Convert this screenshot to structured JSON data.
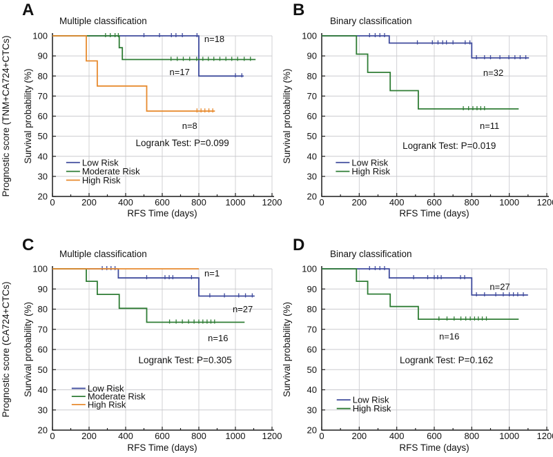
{
  "figure": {
    "description": "Kaplan-Meier recurrence-free survival curves, four panels",
    "colors": {
      "low_risk": "#3e4a9c",
      "moderate_risk": "#2e7c34",
      "high_risk": "#e78a2e",
      "grid": "#cbcbcf",
      "axis": "#1c1c1c",
      "text": "#111111",
      "background": "#ffffff"
    }
  },
  "chart_data": [
    {
      "panel_label": "A",
      "type": "line",
      "km_step": true,
      "title": "Multiple classification",
      "xlabel": "RFS Time (days)",
      "ylabel": "Survival probability (%)",
      "ylabel_outer": "Prognostic score (TNM+CA724+CTCs)",
      "xlim": [
        0,
        1200
      ],
      "ylim": [
        20,
        100
      ],
      "xticks": [
        0,
        200,
        400,
        600,
        800,
        1000,
        1200
      ],
      "x_minor_ticks": [
        100,
        300,
        500,
        700,
        900,
        1100
      ],
      "yticks": [
        20,
        30,
        40,
        50,
        60,
        70,
        80,
        90,
        100
      ],
      "grid": true,
      "annotation": {
        "text": "Logrank Test: P=0.099",
        "day": 710,
        "value": 46.5
      },
      "legend": {
        "position": "lower-left",
        "day": 75,
        "value": 36.9,
        "row_step_value": 4.4
      },
      "series": [
        {
          "name": "Low Risk",
          "color": "#3e4a9c",
          "n_label": "n=18",
          "n_label_day": 885,
          "n_label_value": 98.3,
          "steps_day_value": [
            [
              0,
              100
            ],
            [
              800,
              100
            ],
            [
              800,
              80
            ],
            [
              1045,
              80
            ]
          ],
          "censor_day_value": [
            [
              500,
              100
            ],
            [
              585,
              100
            ],
            [
              650,
              100
            ],
            [
              675,
              100
            ],
            [
              710,
              100
            ],
            [
              790,
              100
            ],
            [
              1000,
              80
            ],
            [
              1035,
              80
            ]
          ]
        },
        {
          "name": "Moderate Risk",
          "color": "#2e7c34",
          "n_label": "n=17",
          "n_label_day": 695,
          "n_label_value": 81.8,
          "steps_day_value": [
            [
              0,
              100
            ],
            [
              365,
              100
            ],
            [
              365,
              94.1
            ],
            [
              382,
              94.1
            ],
            [
              382,
              88.2
            ],
            [
              1110,
              88.2
            ]
          ],
          "censor_day_value": [
            [
              290,
              100
            ],
            [
              316,
              100
            ],
            [
              342,
              100
            ],
            [
              360,
              100
            ],
            [
              648,
              88.2
            ],
            [
              682,
              88.2
            ],
            [
              715,
              88.2
            ],
            [
              750,
              88.2
            ],
            [
              788,
              88.2
            ],
            [
              822,
              88.2
            ],
            [
              852,
              88.2
            ],
            [
              882,
              88.2
            ],
            [
              915,
              88.2
            ],
            [
              948,
              88.2
            ],
            [
              980,
              88.2
            ],
            [
              1012,
              88.2
            ],
            [
              1048,
              88.2
            ],
            [
              1082,
              88.2
            ]
          ]
        },
        {
          "name": "High Risk",
          "color": "#e78a2e",
          "n_label": "n=8",
          "n_label_day": 750,
          "n_label_value": 55,
          "steps_day_value": [
            [
              0,
              100
            ],
            [
              185,
              100
            ],
            [
              185,
              87.5
            ],
            [
              245,
              87.5
            ],
            [
              245,
              75
            ],
            [
              515,
              75
            ],
            [
              515,
              62.5
            ],
            [
              888,
              62.5
            ]
          ],
          "censor_day_value": [
            [
              790,
              62.5
            ],
            [
              812,
              62.5
            ],
            [
              833,
              62.5
            ],
            [
              855,
              62.5
            ],
            [
              876,
              62.5
            ]
          ]
        }
      ]
    },
    {
      "panel_label": "B",
      "type": "line",
      "km_step": true,
      "title": "Binary classification",
      "xlabel": "RFS Time (days)",
      "ylabel": "Survival probability (%)",
      "xlim": [
        0,
        1200
      ],
      "ylim": [
        20,
        100
      ],
      "xticks": [
        0,
        200,
        400,
        600,
        800,
        1000,
        1200
      ],
      "x_minor_ticks": [
        100,
        300,
        500,
        700,
        900,
        1100
      ],
      "yticks": [
        20,
        30,
        40,
        50,
        60,
        70,
        80,
        90,
        100
      ],
      "grid": true,
      "annotation": {
        "text": "Logrank Test: P=0.019",
        "day": 680,
        "value": 45.0
      },
      "legend": {
        "position": "lower-left",
        "day": 75,
        "value": 36.9,
        "row_step_value": 4.4
      },
      "series": [
        {
          "name": "Low Risk",
          "color": "#3e4a9c",
          "n_label": "n=32",
          "n_label_day": 915,
          "n_label_value": 81.5,
          "steps_day_value": [
            [
              0,
              100
            ],
            [
              360,
              100
            ],
            [
              360,
              96.4
            ],
            [
              800,
              96.4
            ],
            [
              800,
              89
            ],
            [
              1105,
              89
            ]
          ],
          "censor_day_value": [
            [
              255,
              100
            ],
            [
              285,
              100
            ],
            [
              310,
              100
            ],
            [
              335,
              100
            ],
            [
              510,
              96.4
            ],
            [
              590,
              96.4
            ],
            [
              620,
              96.4
            ],
            [
              645,
              96.4
            ],
            [
              665,
              96.4
            ],
            [
              700,
              96.4
            ],
            [
              765,
              96.4
            ],
            [
              790,
              96.4
            ],
            [
              825,
              89
            ],
            [
              868,
              89
            ],
            [
              900,
              89
            ],
            [
              950,
              89
            ],
            [
              998,
              89
            ],
            [
              1030,
              89
            ],
            [
              1058,
              89
            ],
            [
              1088,
              89
            ]
          ]
        },
        {
          "name": "High Risk",
          "color": "#2e7c34",
          "n_label": "n=11",
          "n_label_day": 895,
          "n_label_value": 55,
          "steps_day_value": [
            [
              0,
              100
            ],
            [
              185,
              100
            ],
            [
              185,
              90.9
            ],
            [
              245,
              90.9
            ],
            [
              245,
              81.8
            ],
            [
              365,
              81.8
            ],
            [
              365,
              72.7
            ],
            [
              515,
              72.7
            ],
            [
              515,
              63.6
            ],
            [
              1050,
              63.6
            ]
          ],
          "censor_day_value": [
            [
              755,
              63.6
            ],
            [
              783,
              63.6
            ],
            [
              806,
              63.6
            ],
            [
              828,
              63.6
            ],
            [
              848,
              63.6
            ],
            [
              868,
              63.6
            ]
          ]
        }
      ]
    },
    {
      "panel_label": "C",
      "type": "line",
      "km_step": true,
      "title": "Multiple classification",
      "xlabel": "RFS Time (days)",
      "ylabel": "Survival probability (%)",
      "ylabel_outer": "Prognostic score (CA724+CTCs)",
      "xlim": [
        0,
        1200
      ],
      "ylim": [
        20,
        100
      ],
      "xticks": [
        0,
        200,
        400,
        600,
        800,
        1000,
        1200
      ],
      "x_minor_ticks": [
        100,
        300,
        500,
        700,
        900,
        1100
      ],
      "yticks": [
        20,
        30,
        40,
        50,
        60,
        70,
        80,
        90,
        100
      ],
      "grid": true,
      "annotation": {
        "text": "Logrank Test: P=0.305",
        "day": 725,
        "value": 54.5
      },
      "legend": {
        "position": "lower-left",
        "day": 105,
        "value": 40.7,
        "row_step_value": 4.0
      },
      "series": [
        {
          "name": "Low Risk",
          "color": "#3e4a9c",
          "n_label": "n=27",
          "n_label_day": 1040,
          "n_label_value": 79.8,
          "steps_day_value": [
            [
              0,
              100
            ],
            [
              360,
              100
            ],
            [
              360,
              95.5
            ],
            [
              800,
              95.5
            ],
            [
              800,
              86.5
            ],
            [
              1105,
              86.5
            ]
          ],
          "censor_day_value": [
            [
              272,
              100
            ],
            [
              297,
              100
            ],
            [
              320,
              100
            ],
            [
              342,
              100
            ],
            [
              515,
              95.5
            ],
            [
              615,
              95.5
            ],
            [
              638,
              95.5
            ],
            [
              658,
              95.5
            ],
            [
              760,
              95.5
            ],
            [
              860,
              86.5
            ],
            [
              940,
              86.5
            ],
            [
              1018,
              86.5
            ],
            [
              1055,
              86.5
            ],
            [
              1092,
              86.5
            ]
          ]
        },
        {
          "name": "Moderate Risk",
          "color": "#2e7c34",
          "n_label": "n=16",
          "n_label_day": 905,
          "n_label_value": 65.5,
          "steps_day_value": [
            [
              0,
              100
            ],
            [
              185,
              100
            ],
            [
              185,
              93.8
            ],
            [
              245,
              93.8
            ],
            [
              245,
              87.3
            ],
            [
              365,
              87.3
            ],
            [
              365,
              80.4
            ],
            [
              515,
              80.4
            ],
            [
              515,
              73.5
            ],
            [
              1050,
              73.5
            ]
          ],
          "censor_day_value": [
            [
              640,
              73.5
            ],
            [
              676,
              73.5
            ],
            [
              710,
              73.5
            ],
            [
              744,
              73.5
            ],
            [
              774,
              73.5
            ],
            [
              800,
              73.5
            ],
            [
              822,
              73.5
            ],
            [
              845,
              73.5
            ],
            [
              866,
              73.5
            ],
            [
              886,
              73.5
            ]
          ]
        },
        {
          "name": "High Risk",
          "color": "#e78a2e",
          "n_label": "n=1",
          "n_label_day": 872,
          "n_label_value": 97.6,
          "steps_day_value": [
            [
              0,
              100
            ],
            [
              800,
              100
            ]
          ],
          "censor_day_value": []
        }
      ]
    },
    {
      "panel_label": "D",
      "type": "line",
      "km_step": true,
      "title": "Binary classification",
      "xlabel": "RFS Time (days)",
      "ylabel": "Survival probability (%)",
      "xlim": [
        0,
        1200
      ],
      "ylim": [
        20,
        100
      ],
      "xticks": [
        0,
        200,
        400,
        600,
        800,
        1000,
        1200
      ],
      "x_minor_ticks": [
        100,
        300,
        500,
        700,
        900,
        1100
      ],
      "yticks": [
        20,
        30,
        40,
        50,
        60,
        70,
        80,
        90,
        100
      ],
      "grid": true,
      "annotation": {
        "text": "Logrank Test: P=0.162",
        "day": 665,
        "value": 54.5
      },
      "legend": {
        "position": "lower-left",
        "day": 80,
        "value": 35.0,
        "row_step_value": 4.3
      },
      "series": [
        {
          "name": "Low Risk",
          "color": "#3e4a9c",
          "n_label": "n=27",
          "n_label_day": 950,
          "n_label_value": 91.0,
          "steps_day_value": [
            [
              0,
              100
            ],
            [
              360,
              100
            ],
            [
              360,
              95.5
            ],
            [
              800,
              95.5
            ],
            [
              800,
              87
            ],
            [
              1100,
              87
            ]
          ],
          "censor_day_value": [
            [
              255,
              100
            ],
            [
              285,
              100
            ],
            [
              310,
              100
            ],
            [
              335,
              100
            ],
            [
              490,
              95.5
            ],
            [
              565,
              95.5
            ],
            [
              600,
              95.5
            ],
            [
              618,
              95.5
            ],
            [
              637,
              95.5
            ],
            [
              740,
              95.5
            ],
            [
              762,
              95.5
            ],
            [
              825,
              87
            ],
            [
              868,
              87
            ],
            [
              928,
              87
            ],
            [
              968,
              87
            ],
            [
              1000,
              87
            ],
            [
              1022,
              87
            ],
            [
              1045,
              87
            ],
            [
              1075,
              87
            ]
          ]
        },
        {
          "name": "High Risk",
          "color": "#2e7c34",
          "n_label": "n=16",
          "n_label_day": 680,
          "n_label_value": 66.3,
          "steps_day_value": [
            [
              0,
              100
            ],
            [
              185,
              100
            ],
            [
              185,
              93.8
            ],
            [
              245,
              93.8
            ],
            [
              245,
              87.5
            ],
            [
              365,
              87.5
            ],
            [
              365,
              81.3
            ],
            [
              515,
              81.3
            ],
            [
              515,
              75
            ],
            [
              1050,
              75
            ]
          ],
          "censor_day_value": [
            [
              625,
              75
            ],
            [
              668,
              75
            ],
            [
              706,
              75
            ],
            [
              742,
              75
            ],
            [
              768,
              75
            ],
            [
              792,
              75
            ],
            [
              815,
              75
            ],
            [
              835,
              75
            ],
            [
              856,
              75
            ],
            [
              878,
              75
            ]
          ]
        }
      ]
    }
  ]
}
